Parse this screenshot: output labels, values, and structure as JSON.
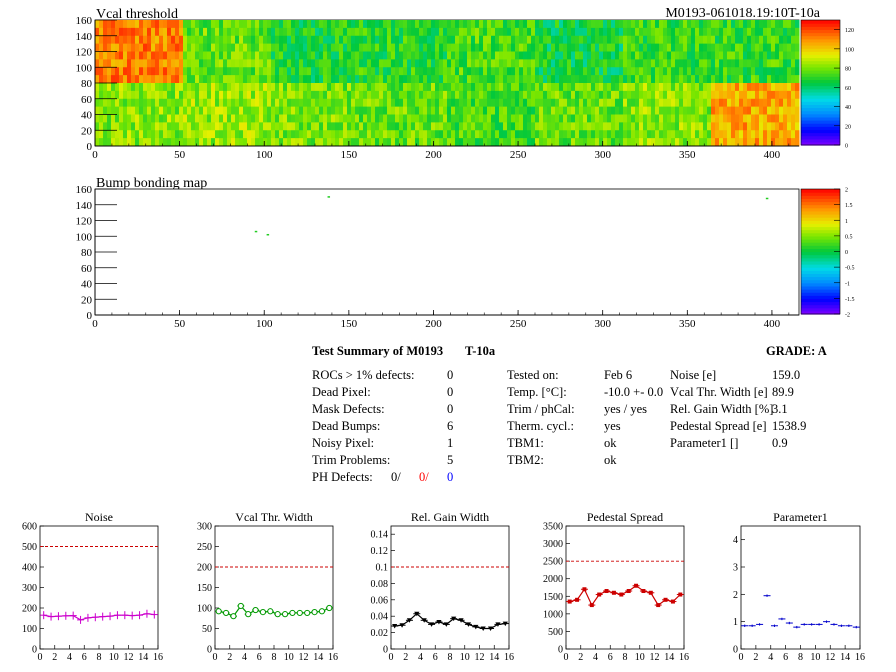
{
  "top_right_label": "M0193-061018.19:10T-10a",
  "maps": [
    {
      "title": "Vcal threshold",
      "x_ticks": [
        0,
        50,
        100,
        150,
        200,
        250,
        300,
        350,
        400
      ],
      "y_ticks": [
        0,
        20,
        40,
        60,
        80,
        100,
        120,
        140,
        160
      ],
      "palette_labels": [
        "0",
        "20",
        "40",
        "60",
        "80",
        "100",
        "120"
      ]
    },
    {
      "title": "Bump bonding map",
      "x_ticks": [
        0,
        50,
        100,
        150,
        200,
        250,
        300,
        350,
        400
      ],
      "y_ticks": [
        0,
        20,
        40,
        60,
        80,
        100,
        120,
        140,
        160
      ],
      "palette_labels": [
        "-2",
        "-1.5",
        "-1",
        "-0.5",
        "0",
        "0.5",
        "1",
        "1.5",
        "2"
      ]
    }
  ],
  "summary": {
    "title": "Test Summary of M0193",
    "tag": "T-10a",
    "grade": "GRADE:  A",
    "col1": [
      {
        "label": "ROCs > 1% defects:",
        "value": "0"
      },
      {
        "label": "Dead Pixel:",
        "value": "0"
      },
      {
        "label": "Mask Defects:",
        "value": "0"
      },
      {
        "label": "Dead Bumps:",
        "value": "6"
      },
      {
        "label": "Noisy Pixel:",
        "value": "1"
      },
      {
        "label": "Trim Problems:",
        "value": "5"
      }
    ],
    "ph_defects": {
      "label": "PH Defects:",
      "v1": "0/",
      "v2": "0/",
      "v3": "0"
    },
    "col2": [
      {
        "label": "Tested on:",
        "value": "Feb 6"
      },
      {
        "label": "Temp. [°C]:",
        "value": "-10.0 +- 0.0"
      },
      {
        "label": "Trim / phCal:",
        "value": "yes / yes"
      },
      {
        "label": "Therm. cycl.:",
        "value": "yes"
      },
      {
        "label": "TBM1:",
        "value": "ok"
      },
      {
        "label": "TBM2:",
        "value": "ok"
      }
    ],
    "col3": [
      {
        "label": "Noise [e]",
        "value": "159.0"
      },
      {
        "label": "Vcal Thr. Width [e]",
        "value": "89.9"
      },
      {
        "label": "Rel. Gain Width [%]",
        "value": "3.1"
      },
      {
        "label": "Pedestal Spread [e]",
        "value": "1538.9"
      },
      {
        "label": "Parameter1 []",
        "value": "0.9"
      }
    ]
  },
  "chart_data": [
    {
      "type": "heatmap",
      "title": "Vcal threshold",
      "xlim": [
        0,
        416
      ],
      "ylim": [
        0,
        160
      ],
      "zlim": [
        0,
        130
      ],
      "x_ticks": [
        0,
        50,
        100,
        150,
        200,
        250,
        300,
        350,
        400
      ],
      "y_ticks": [
        0,
        20,
        40,
        60,
        80,
        100,
        120,
        140,
        160
      ],
      "palette_labels": [
        0,
        20,
        40,
        60,
        80,
        100,
        120
      ],
      "roc_grid": {
        "cols": 8,
        "rows": 2
      },
      "roc_mean_values_top": [
        112,
        78,
        68,
        70,
        74,
        66,
        72,
        72
      ],
      "roc_mean_values_bottom": [
        82,
        84,
        80,
        78,
        74,
        78,
        82,
        106
      ]
    },
    {
      "type": "scatter",
      "title": "Bump bonding map",
      "xlim": [
        0,
        416
      ],
      "ylim": [
        0,
        160
      ],
      "zlim": [
        -2,
        2
      ],
      "x_ticks": [
        0,
        50,
        100,
        150,
        200,
        250,
        300,
        350,
        400
      ],
      "y_ticks": [
        0,
        20,
        40,
        60,
        80,
        100,
        120,
        140,
        160
      ],
      "palette_labels": [
        -2,
        -1.5,
        -1,
        -0.5,
        0,
        0.5,
        1,
        1.5,
        2
      ],
      "points": [
        [
          138,
          150
        ],
        [
          95,
          106
        ],
        [
          102,
          102
        ],
        [
          397,
          148
        ]
      ]
    },
    {
      "type": "line",
      "title": "Noise",
      "color": "#cc00cc",
      "marker": "plus",
      "x": [
        0,
        1,
        2,
        3,
        4,
        5,
        6,
        7,
        8,
        9,
        10,
        11,
        12,
        13,
        14,
        15
      ],
      "values": [
        165,
        158,
        160,
        162,
        163,
        142,
        152,
        155,
        158,
        160,
        165,
        165,
        163,
        165,
        172,
        168
      ],
      "ylim": [
        0,
        600
      ],
      "y_ticks": [
        0,
        100,
        200,
        300,
        400,
        500,
        600
      ],
      "x_ticks": [
        0,
        2,
        4,
        6,
        8,
        10,
        12,
        14,
        16
      ],
      "xlim": [
        0,
        16
      ],
      "threshold": 500
    },
    {
      "type": "line",
      "title": "Vcal Thr. Width",
      "color": "#009900",
      "marker": "circle",
      "x": [
        0,
        1,
        2,
        3,
        4,
        5,
        6,
        7,
        8,
        9,
        10,
        11,
        12,
        13,
        14,
        15
      ],
      "values": [
        92,
        88,
        80,
        105,
        85,
        95,
        90,
        92,
        85,
        85,
        88,
        88,
        88,
        90,
        92,
        100
      ],
      "ylim": [
        0,
        300
      ],
      "y_ticks": [
        0,
        50,
        100,
        150,
        200,
        250,
        300
      ],
      "x_ticks": [
        0,
        2,
        4,
        6,
        8,
        10,
        12,
        14,
        16
      ],
      "xlim": [
        0,
        16
      ],
      "threshold": 200
    },
    {
      "type": "line",
      "title": "Rel. Gain Width",
      "color": "#000000",
      "marker": "triangle",
      "x": [
        0,
        1,
        2,
        3,
        4,
        5,
        6,
        7,
        8,
        9,
        10,
        11,
        12,
        13,
        14,
        15
      ],
      "values": [
        0.028,
        0.029,
        0.035,
        0.043,
        0.035,
        0.03,
        0.033,
        0.03,
        0.037,
        0.035,
        0.03,
        0.027,
        0.025,
        0.025,
        0.03,
        0.031
      ],
      "ylim": [
        0,
        0.15
      ],
      "y_ticks": [
        0,
        0.02,
        0.04,
        0.06,
        0.08,
        0.1,
        0.12,
        0.14
      ],
      "x_ticks": [
        0,
        2,
        4,
        6,
        8,
        10,
        12,
        14,
        16
      ],
      "xlim": [
        0,
        16
      ],
      "threshold": 0.1
    },
    {
      "type": "line",
      "title": "Pedestal Spread",
      "color": "#cc0000",
      "marker": "square",
      "x": [
        0,
        1,
        2,
        3,
        4,
        5,
        6,
        7,
        8,
        9,
        10,
        11,
        12,
        13,
        14,
        15
      ],
      "values": [
        1350,
        1400,
        1700,
        1250,
        1550,
        1650,
        1600,
        1550,
        1650,
        1800,
        1650,
        1600,
        1250,
        1400,
        1350,
        1550
      ],
      "ylim": [
        0,
        3500
      ],
      "y_ticks": [
        0,
        500,
        1000,
        1500,
        2000,
        2500,
        3000,
        3500
      ],
      "x_ticks": [
        0,
        2,
        4,
        6,
        8,
        10,
        12,
        14,
        16
      ],
      "xlim": [
        0,
        16
      ],
      "threshold": 2500
    },
    {
      "type": "line",
      "title": "Parameter1",
      "color": "#0000cc",
      "marker": "hbar",
      "x": [
        0,
        1,
        2,
        3,
        4,
        5,
        6,
        7,
        8,
        9,
        10,
        11,
        12,
        13,
        14,
        15
      ],
      "values": [
        0.85,
        0.85,
        0.9,
        1.95,
        0.85,
        1.1,
        0.95,
        0.8,
        0.9,
        0.9,
        0.9,
        1.0,
        0.9,
        0.85,
        0.85,
        0.8
      ],
      "ylim": [
        0,
        4.5
      ],
      "y_ticks": [
        0,
        1,
        2,
        3,
        4
      ],
      "x_ticks": [
        0,
        2,
        4,
        6,
        8,
        10,
        12,
        14,
        16
      ],
      "xlim": [
        0,
        16
      ],
      "connect": false
    }
  ]
}
